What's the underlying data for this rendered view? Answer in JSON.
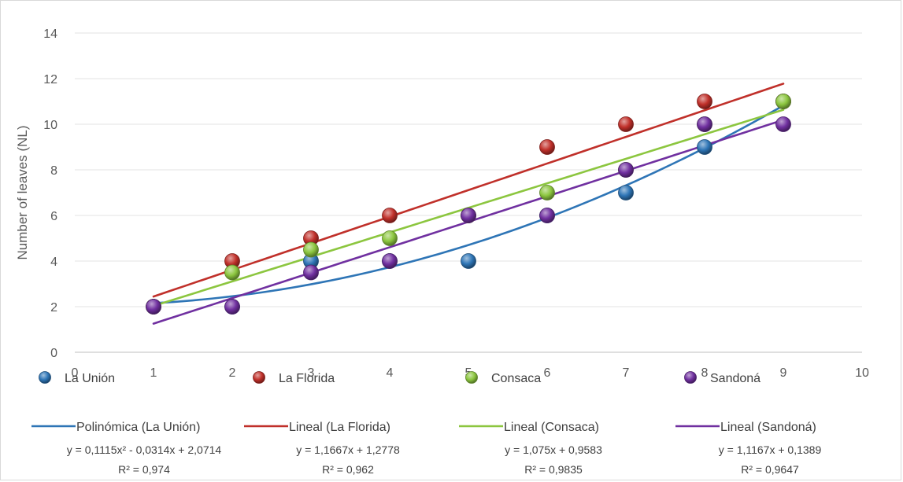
{
  "chart_data": {
    "type": "scatter",
    "title": "",
    "xlabel": "",
    "ylabel": "Number of leaves (NL)",
    "xlim": [
      0,
      10
    ],
    "ylim": [
      0,
      14
    ],
    "x_ticks": [
      0,
      1,
      2,
      3,
      4,
      5,
      6,
      7,
      8,
      9,
      10
    ],
    "y_ticks": [
      0,
      2,
      4,
      6,
      8,
      10,
      12,
      14
    ],
    "grid": "horizontal",
    "legend_position": "bottom",
    "series": [
      {
        "name": "La Unión",
        "color": "#2e75b6",
        "x": [
          1,
          2,
          3,
          4,
          5,
          6,
          7,
          8,
          9
        ],
        "y": [
          2,
          2,
          4,
          4,
          4,
          6,
          7,
          9,
          11
        ]
      },
      {
        "name": "La Florida",
        "color": "#c0302a",
        "x": [
          1,
          2,
          3,
          4,
          5,
          6,
          7,
          8,
          9
        ],
        "y": [
          2,
          4,
          5,
          6,
          6,
          9,
          10,
          11,
          11
        ]
      },
      {
        "name": "Consaca",
        "color": "#8cc63f",
        "x": [
          1,
          2,
          3,
          4,
          5,
          6,
          7,
          8,
          9
        ],
        "y": [
          2,
          3.5,
          4.5,
          5,
          6,
          7,
          8,
          10,
          11
        ]
      },
      {
        "name": "Sandoná",
        "color": "#7030a0",
        "x": [
          1,
          2,
          3,
          4,
          5,
          6,
          7,
          8,
          9
        ],
        "y": [
          2,
          2,
          3.5,
          4,
          6,
          6,
          8,
          10,
          10
        ]
      }
    ],
    "trendlines": [
      {
        "name": "Polinómica (La Unión)",
        "type": "polynomial",
        "color": "#2e75b6",
        "coefficients": [
          0.1115,
          -0.0314,
          2.0714
        ],
        "equation": "y = 0,1115x² - 0,0314x + 2,0714",
        "r2": "R² = 0,974"
      },
      {
        "name": "Lineal (La Florida)",
        "type": "linear",
        "color": "#c0302a",
        "coefficients": [
          1.1667,
          1.2778
        ],
        "equation": "y = 1,1667x + 1,2778",
        "r2": "R² = 0,962"
      },
      {
        "name": "Lineal (Consaca)",
        "type": "linear",
        "color": "#8cc63f",
        "coefficients": [
          1.075,
          0.9583
        ],
        "equation": "y = 1,075x + 0,9583",
        "r2": "R² = 0,9835"
      },
      {
        "name": "Lineal (Sandoná)",
        "type": "linear",
        "color": "#7030a0",
        "coefficients": [
          1.1167,
          0.1389
        ],
        "equation": "y = 1,1167x + 0,1389",
        "r2": "R² = 0,9647"
      }
    ]
  }
}
